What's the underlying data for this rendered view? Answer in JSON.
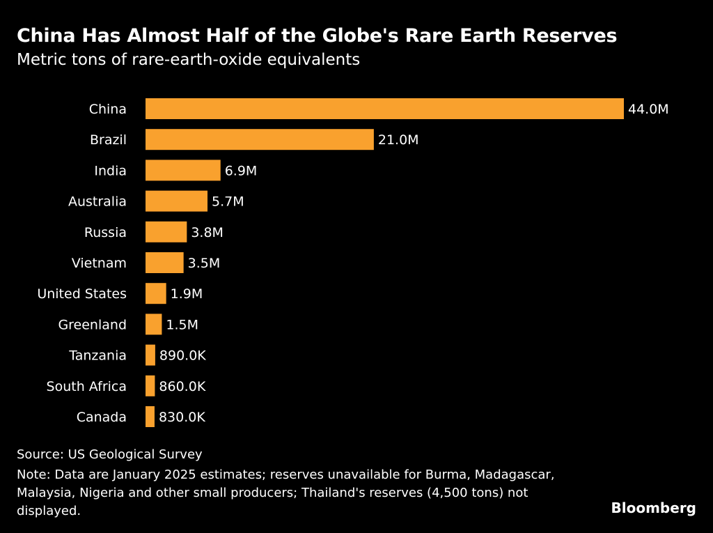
{
  "title": "China Has Almost Half of the Globe's Rare Earth Reserves",
  "subtitle": "Metric tons of rare-earth-oxide equivalents",
  "source": "Source: US Geological Survey",
  "note": "Note: Data are January 2025 estimates; reserves unavailable for Burma, Madagascar, Malaysia, Nigeria and other small producers; Thailand's reserves (4,500 tons) not displayed.",
  "brand": "Bloomberg",
  "chart_data": {
    "type": "bar",
    "orientation": "horizontal",
    "title": "China Has Almost Half of the Globe's Rare Earth Reserves",
    "subtitle": "Metric tons of rare-earth-oxide equivalents",
    "categories": [
      "China",
      "Brazil",
      "India",
      "Australia",
      "Russia",
      "Vietnam",
      "United States",
      "Greenland",
      "Tanzania",
      "South Africa",
      "Canada"
    ],
    "values": [
      44000000,
      21000000,
      6900000,
      5700000,
      3800000,
      3500000,
      1900000,
      1500000,
      890000,
      860000,
      830000
    ],
    "data_labels": [
      "44.0M",
      "21.0M",
      "6.9M",
      "5.7M",
      "3.8M",
      "3.5M",
      "1.9M",
      "1.5M",
      "890.0K",
      "860.0K",
      "830.0K"
    ],
    "xlim": [
      0,
      44000000
    ],
    "grid": false,
    "bar_color": "#F9A12E"
  }
}
